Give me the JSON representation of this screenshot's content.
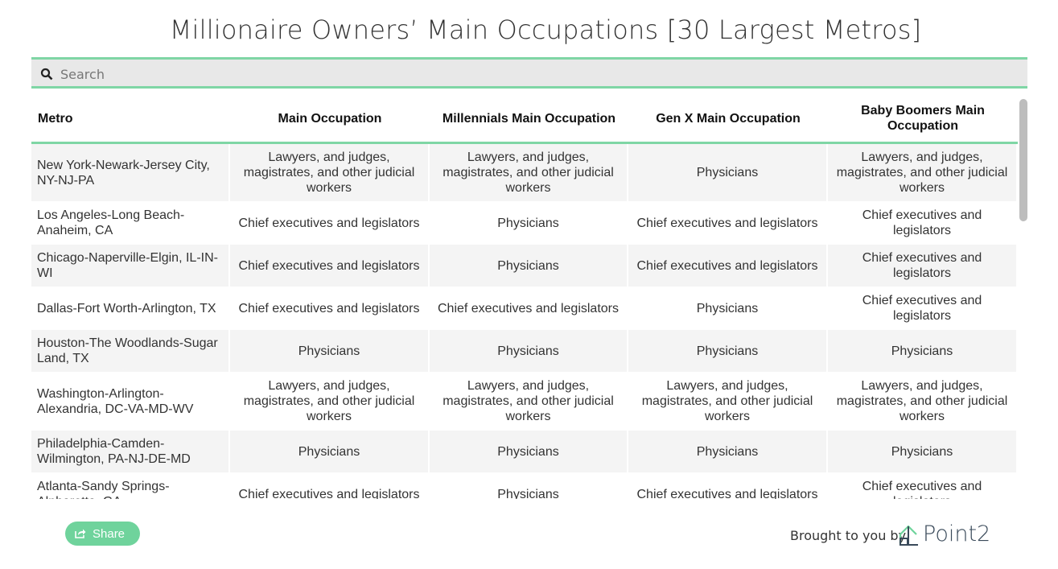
{
  "header": {
    "title": "Millionaire Owners’ Main Occupations [30 Largest Metros]",
    "search_placeholder": "Search"
  },
  "table": {
    "columns": [
      "Metro",
      "Main Occupation",
      "Millennials Main Occupation",
      "Gen X Main Occupation",
      "Baby Boomers Main Occupation"
    ],
    "rows": [
      [
        "New York-Newark-Jersey City, NY-NJ-PA",
        "Lawyers, and judges, magistrates, and other judicial workers",
        "Lawyers, and judges, magistrates, and other judicial workers",
        "Physicians",
        "Lawyers, and judges, magistrates, and other judicial workers"
      ],
      [
        "Los Angeles-Long Beach-Anaheim, CA",
        "Chief executives and legislators",
        "Physicians",
        "Chief executives and legislators",
        "Chief executives and legislators"
      ],
      [
        "Chicago-Naperville-Elgin, IL-IN-WI",
        "Chief executives and legislators",
        "Physicians",
        "Chief executives and legislators",
        "Chief executives and legislators"
      ],
      [
        "Dallas-Fort Worth-Arlington, TX",
        "Chief executives and legislators",
        "Chief executives and legislators",
        "Physicians",
        "Chief executives and legislators"
      ],
      [
        "Houston-The Woodlands-Sugar Land, TX",
        "Physicians",
        "Physicians",
        "Physicians",
        "Physicians"
      ],
      [
        "Washington-Arlington-Alexandria, DC-VA-MD-WV",
        "Lawyers, and judges, magistrates, and other judicial workers",
        "Lawyers, and judges, magistrates, and other judicial workers",
        "Lawyers, and judges, magistrates, and other judicial workers",
        "Lawyers, and judges, magistrates, and other judicial workers"
      ],
      [
        "Philadelphia-Camden-Wilmington, PA-NJ-DE-MD",
        "Physicians",
        "Physicians",
        "Physicians",
        "Physicians"
      ],
      [
        "Atlanta-Sandy Springs-Alpharetta, GA",
        "Chief executives and legislators",
        "Physicians",
        "Chief executives and legislators",
        "Chief executives and legislators"
      ]
    ]
  },
  "footer": {
    "share": "Share",
    "credit": "Brought to you by",
    "logo": "Point2"
  }
}
